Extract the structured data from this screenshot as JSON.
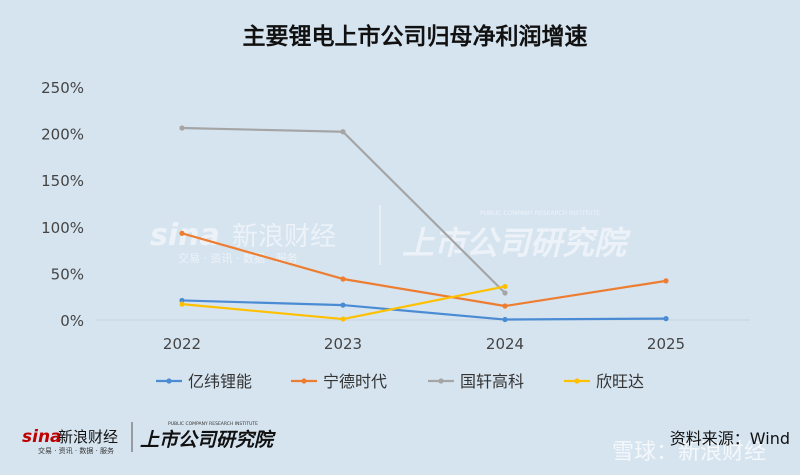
{
  "chart_data": {
    "type": "line",
    "title": "主要锂电上市公司归母净利润增速",
    "x": [
      "2022",
      "2023",
      "2024",
      "2025"
    ],
    "ylim": [
      0,
      250
    ],
    "yticks": [
      "0%",
      "50%",
      "100%",
      "150%",
      "200%",
      "250%"
    ],
    "grid": false,
    "legend_position": "bottom",
    "series": [
      {
        "name": "亿纬锂能",
        "color": "#4a8bd4",
        "values": [
          21,
          16,
          0.5,
          1.5
        ]
      },
      {
        "name": "宁德时代",
        "color": "#ed7d31",
        "values": [
          93,
          44,
          15,
          42
        ]
      },
      {
        "name": "国轩高科",
        "color": "#a5a5a5",
        "values": [
          206,
          202,
          29,
          null
        ]
      },
      {
        "name": "欣旺达",
        "color": "#ffc000",
        "values": [
          17,
          1,
          36,
          null
        ]
      }
    ]
  },
  "watermark": {
    "brand": "新浪财经",
    "brand_logo": "sina",
    "brand_sub": "交易 · 资讯 · 数据 · 服务",
    "institute": "上市公司研究院",
    "institute_en": "PUBLIC COMPANY RESEARCH INSTITUTE"
  },
  "footer": {
    "source": "资料来源：Wind",
    "xueqiu": "雪球：新浪财经"
  }
}
